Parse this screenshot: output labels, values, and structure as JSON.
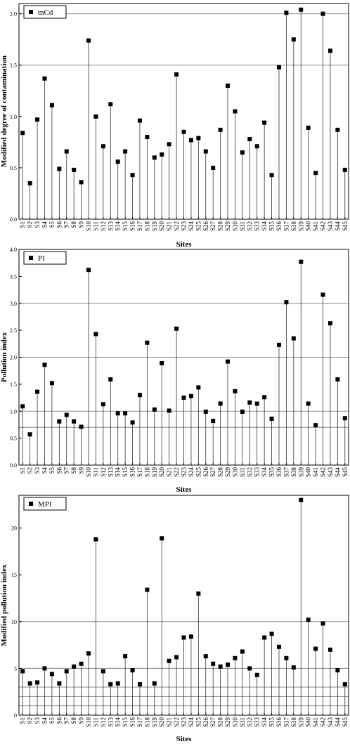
{
  "chart_data": [
    {
      "type": "scatter",
      "style": "stem",
      "categories": [
        "S1",
        "S2",
        "S3",
        "S4",
        "S5",
        "S6",
        "S7",
        "S8",
        "S9",
        "S10",
        "S11",
        "S12",
        "S13",
        "S14",
        "S15",
        "S16",
        "S17",
        "S18",
        "S19",
        "S20",
        "S21",
        "S22",
        "S23",
        "S24",
        "S25",
        "S26",
        "S27",
        "S28",
        "S29",
        "S30",
        "S31",
        "S32",
        "S33",
        "S34",
        "S35",
        "S36",
        "S37",
        "S38",
        "S39",
        "S40",
        "S41",
        "S42",
        "S43",
        "S44",
        "S45"
      ],
      "series": [
        {
          "name": "mCd",
          "values": [
            0.84,
            0.35,
            0.97,
            1.37,
            1.11,
            0.49,
            0.66,
            0.48,
            0.36,
            1.74,
            1.0,
            0.71,
            1.12,
            0.56,
            0.66,
            0.43,
            0.96,
            0.8,
            0.6,
            0.63,
            0.73,
            1.41,
            0.85,
            0.77,
            0.79,
            0.66,
            0.5,
            0.87,
            1.3,
            1.05,
            0.65,
            0.78,
            0.71,
            0.94,
            0.43,
            1.48,
            2.01,
            1.75,
            2.04,
            0.89,
            0.45,
            2.0,
            1.64,
            0.87,
            0.48
          ]
        }
      ],
      "reference_lines": [
        1.5,
        2.0
      ],
      "title": "",
      "xlabel": "Sites",
      "ylabel": "Modified degree of contamination",
      "ylim": [
        0,
        2.1
      ],
      "yticks": [
        "0.0",
        "0.5",
        "1.0",
        "1.5",
        "2.0"
      ],
      "ytick_values": [
        0,
        0.5,
        1.0,
        1.5,
        2.0
      ],
      "legend": "top-left",
      "grid": false
    },
    {
      "type": "scatter",
      "style": "stem",
      "categories": [
        "S1",
        "S2",
        "S3",
        "S4",
        "S5",
        "S6",
        "S7",
        "S8",
        "S9",
        "S10",
        "S11",
        "S12",
        "S13",
        "S14",
        "S15",
        "S16",
        "S17",
        "S18",
        "S19",
        "S20",
        "S21",
        "S22",
        "S23",
        "S24",
        "S25",
        "S26",
        "S27",
        "S28",
        "S29",
        "S30",
        "S31",
        "S32",
        "S33",
        "S34",
        "S35",
        "S36",
        "S37",
        "S38",
        "S39",
        "S40",
        "S41",
        "S42",
        "S43",
        "S44",
        "S45"
      ],
      "series": [
        {
          "name": "PI",
          "values": [
            1.09,
            0.57,
            1.36,
            1.86,
            1.52,
            0.81,
            0.93,
            0.81,
            0.71,
            3.62,
            2.43,
            1.13,
            1.59,
            0.96,
            0.96,
            0.79,
            1.3,
            2.27,
            1.03,
            1.89,
            1.01,
            2.53,
            1.25,
            1.28,
            1.44,
            0.99,
            0.82,
            1.14,
            1.92,
            1.37,
            0.99,
            1.16,
            1.14,
            1.26,
            0.86,
            2.23,
            3.02,
            2.35,
            3.77,
            1.14,
            0.74,
            3.16,
            2.63,
            1.59,
            0.87
          ]
        }
      ],
      "reference_lines": [
        0.7,
        1.0,
        2.0,
        3.0
      ],
      "title": "",
      "xlabel": "Sites",
      "ylabel": "Pollution index",
      "ylim": [
        0,
        4.0
      ],
      "yticks": [
        "0.0",
        "0.5",
        "1.0",
        "1.5",
        "2.0",
        "2.5",
        "3.0",
        "3.5",
        "4.0"
      ],
      "ytick_values": [
        0,
        0.5,
        1.0,
        1.5,
        2.0,
        2.5,
        3.0,
        3.5,
        4.0
      ],
      "legend": "top-left",
      "grid": false
    },
    {
      "type": "scatter",
      "style": "stem",
      "categories": [
        "S1",
        "S2",
        "S3",
        "S4",
        "S5",
        "S6",
        "S7",
        "S8",
        "S9",
        "S10",
        "S11",
        "S12",
        "S13",
        "S14",
        "S15",
        "S16",
        "S17",
        "S18",
        "S19",
        "S20",
        "S21",
        "S22",
        "S23",
        "S24",
        "S25",
        "S26",
        "S27",
        "S28",
        "S29",
        "S30",
        "S31",
        "S32",
        "S33",
        "S34",
        "S35",
        "S36",
        "S37",
        "S38",
        "S39",
        "S40",
        "S41",
        "S42",
        "S43",
        "S44",
        "S45"
      ],
      "series": [
        {
          "name": "MPI",
          "values": [
            4.7,
            3.4,
            3.5,
            5.0,
            4.4,
            3.4,
            4.7,
            5.2,
            5.5,
            6.6,
            18.8,
            4.7,
            3.3,
            3.4,
            6.3,
            4.8,
            3.3,
            13.4,
            3.4,
            18.9,
            5.8,
            6.2,
            8.3,
            8.4,
            13.0,
            6.3,
            5.5,
            5.2,
            5.4,
            6.1,
            6.8,
            5.0,
            4.3,
            8.3,
            8.7,
            7.3,
            6.1,
            5.1,
            23.0,
            10.2,
            7.1,
            9.8,
            7.0,
            4.8,
            3.3
          ]
        }
      ],
      "reference_lines": [
        1.0,
        2.0,
        3.0,
        5.0,
        10.0
      ],
      "title": "",
      "xlabel": "Sites",
      "ylabel": "Modified pollution index",
      "ylim": [
        0,
        23.5
      ],
      "yticks": [
        "0",
        "5",
        "10",
        "15",
        "20"
      ],
      "ytick_values": [
        0,
        5,
        10,
        15,
        20
      ],
      "legend": "top-left",
      "grid": false
    }
  ]
}
